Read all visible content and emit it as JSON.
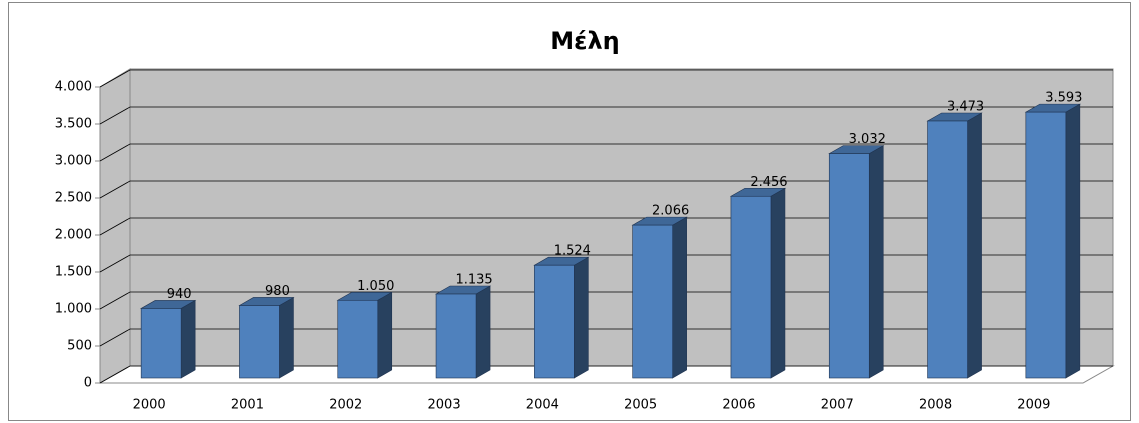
{
  "chart_data": {
    "type": "bar3d",
    "title": "Μέλη",
    "categories": [
      "2000",
      "2001",
      "2002",
      "2003",
      "2004",
      "2005",
      "2006",
      "2007",
      "2008",
      "2009"
    ],
    "values": [
      940,
      980,
      1050,
      1135,
      1524,
      2066,
      2456,
      3032,
      3473,
      3593
    ],
    "value_labels": [
      "940",
      "980",
      "1.050",
      "1.135",
      "1.524",
      "2.066",
      "2.456",
      "3.032",
      "3.473",
      "3.593"
    ],
    "color": "#4f81bd",
    "ylim": [
      0,
      4000
    ],
    "yticks": [
      0,
      500,
      {
        "value": 1000,
        "label": "1.000"
      },
      {
        "value": 1500,
        "label": "1.500"
      },
      {
        "value": 2000,
        "label": "2.000"
      },
      {
        "value": 2500,
        "label": "2.500"
      },
      {
        "value": 3000,
        "label": "3.000"
      },
      {
        "value": 3500,
        "label": "3.500"
      },
      {
        "value": 4000,
        "label": "4.000"
      }
    ],
    "grid": true
  }
}
